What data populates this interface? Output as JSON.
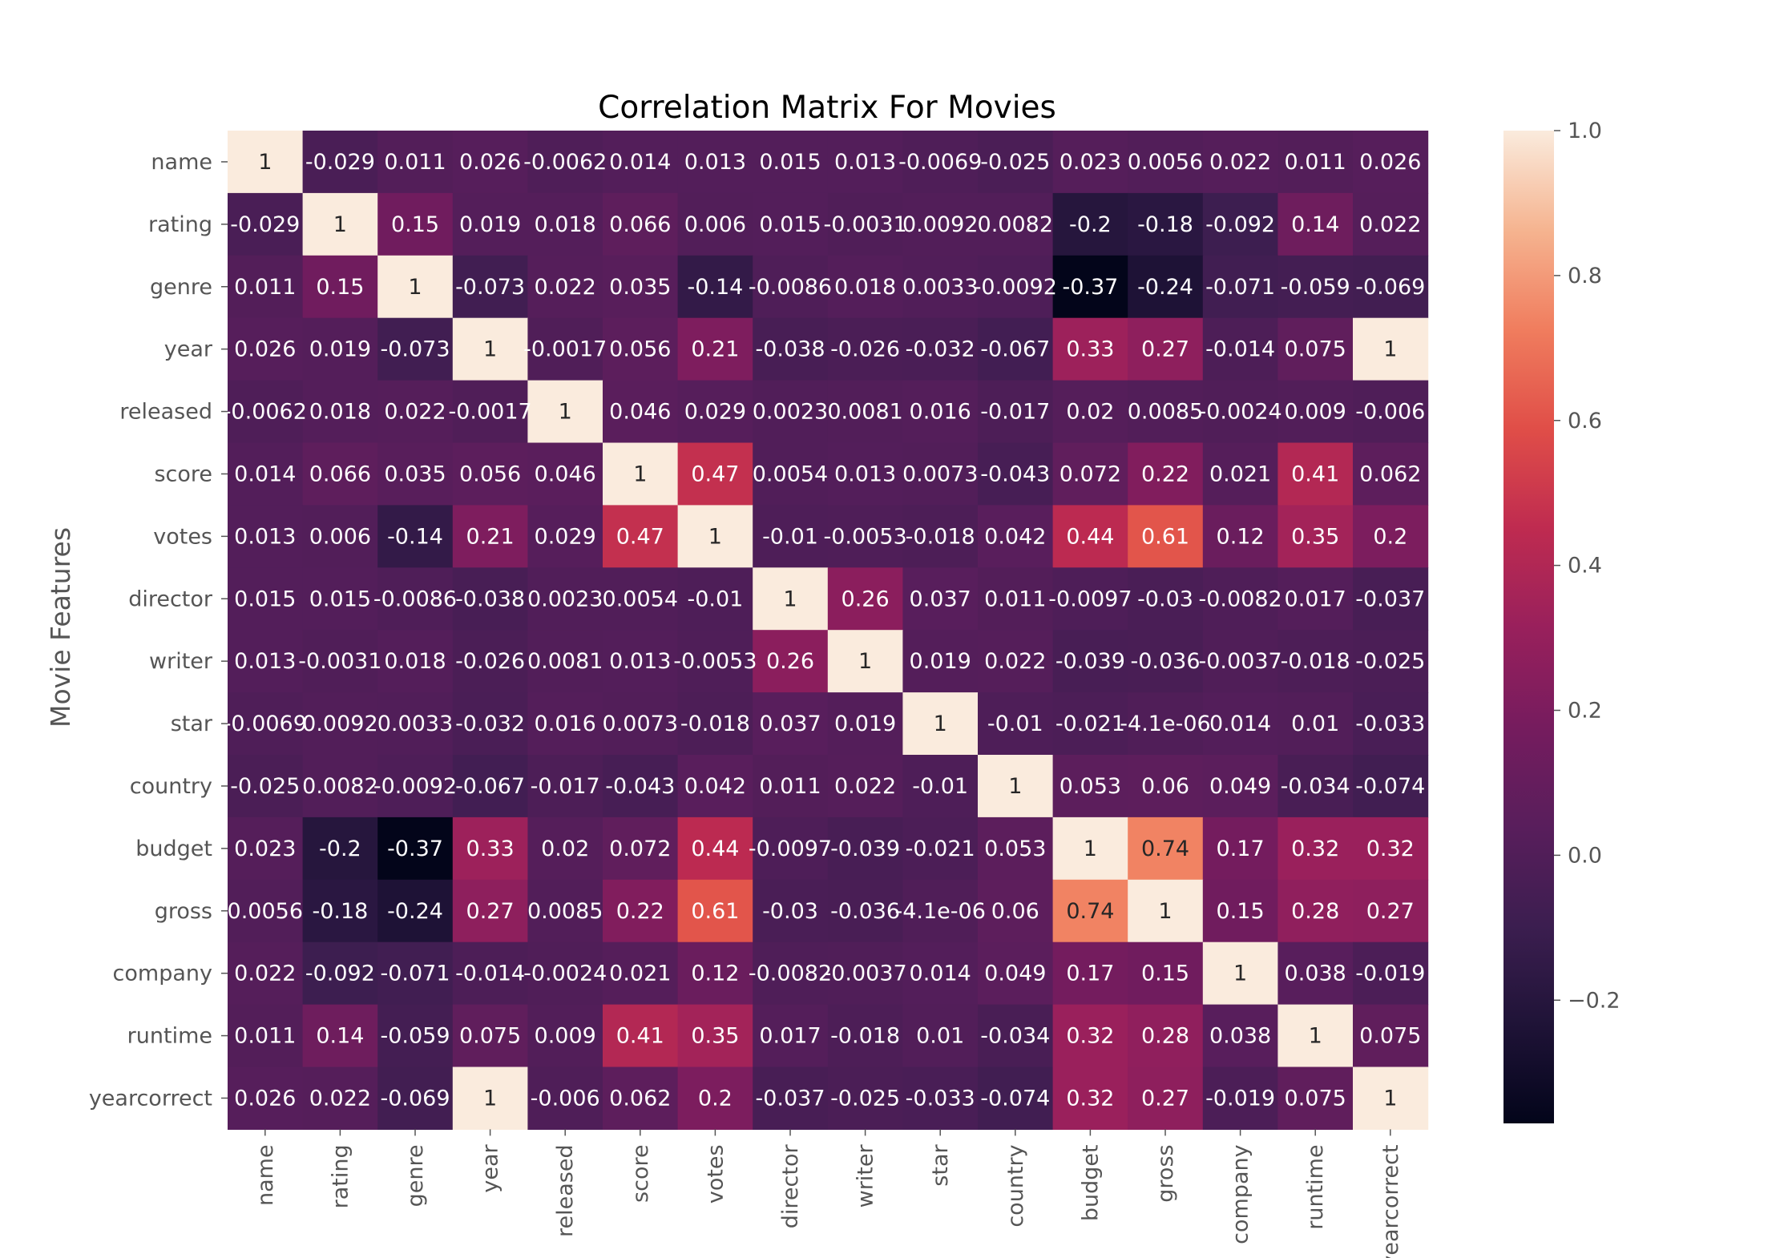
{
  "chart_data": {
    "type": "heatmap",
    "title": "Correlation Matrix For Movies",
    "xlabel": "",
    "ylabel": "Movie Features",
    "colormap": "rocket",
    "colorbar": {
      "vmin": -0.37,
      "vmax": 1.0,
      "ticks": [
        -0.2,
        0.0,
        0.2,
        0.4,
        0.6,
        0.8,
        1.0
      ],
      "tick_labels": [
        "−0.2",
        "0.0",
        "0.2",
        "0.4",
        "0.6",
        "0.8",
        "1.0"
      ]
    },
    "categories": [
      "name",
      "rating",
      "genre",
      "year",
      "released",
      "score",
      "votes",
      "director",
      "writer",
      "star",
      "country",
      "budget",
      "gross",
      "company",
      "runtime",
      "yearcorrect"
    ],
    "values": [
      [
        1,
        -0.029,
        0.011,
        0.026,
        -0.0062,
        0.014,
        0.013,
        0.015,
        0.013,
        -0.0069,
        -0.025,
        0.023,
        0.0056,
        0.022,
        0.011,
        0.026
      ],
      [
        -0.029,
        1,
        0.15,
        0.019,
        0.018,
        0.066,
        0.006,
        0.015,
        -0.0031,
        0.0092,
        0.0082,
        -0.2,
        -0.18,
        -0.092,
        0.14,
        0.022
      ],
      [
        0.011,
        0.15,
        1,
        -0.073,
        0.022,
        0.035,
        -0.14,
        -0.0086,
        0.018,
        0.0033,
        -0.0092,
        -0.37,
        -0.24,
        -0.071,
        -0.059,
        -0.069
      ],
      [
        0.026,
        0.019,
        -0.073,
        1,
        -0.0017,
        0.056,
        0.21,
        -0.038,
        -0.026,
        -0.032,
        -0.067,
        0.33,
        0.27,
        -0.014,
        0.075,
        1
      ],
      [
        -0.0062,
        0.018,
        0.022,
        -0.0017,
        1,
        0.046,
        0.029,
        0.0023,
        0.0081,
        0.016,
        -0.017,
        0.02,
        0.0085,
        -0.0024,
        0.009,
        -0.006
      ],
      [
        0.014,
        0.066,
        0.035,
        0.056,
        0.046,
        1,
        0.47,
        0.0054,
        0.013,
        0.0073,
        -0.043,
        0.072,
        0.22,
        0.021,
        0.41,
        0.062
      ],
      [
        0.013,
        0.006,
        -0.14,
        0.21,
        0.029,
        0.47,
        1,
        -0.01,
        -0.0053,
        -0.018,
        0.042,
        0.44,
        0.61,
        0.12,
        0.35,
        0.2
      ],
      [
        0.015,
        0.015,
        -0.0086,
        -0.038,
        0.0023,
        0.0054,
        -0.01,
        1,
        0.26,
        0.037,
        0.011,
        -0.0097,
        -0.03,
        -0.0082,
        0.017,
        -0.037
      ],
      [
        0.013,
        -0.0031,
        0.018,
        -0.026,
        0.0081,
        0.013,
        -0.0053,
        0.26,
        1,
        0.019,
        0.022,
        -0.039,
        -0.036,
        -0.0037,
        -0.018,
        -0.025
      ],
      [
        -0.0069,
        0.0092,
        0.0033,
        -0.032,
        0.016,
        0.0073,
        -0.018,
        0.037,
        0.019,
        1,
        -0.01,
        -0.021,
        -4.1e-06,
        0.014,
        0.01,
        -0.033
      ],
      [
        -0.025,
        0.0082,
        -0.0092,
        -0.067,
        -0.017,
        -0.043,
        0.042,
        0.011,
        0.022,
        -0.01,
        1,
        0.053,
        0.06,
        0.049,
        -0.034,
        -0.074
      ],
      [
        0.023,
        -0.2,
        -0.37,
        0.33,
        0.02,
        0.072,
        0.44,
        -0.0097,
        -0.039,
        -0.021,
        0.053,
        1,
        0.74,
        0.17,
        0.32,
        0.32
      ],
      [
        0.0056,
        -0.18,
        -0.24,
        0.27,
        0.0085,
        0.22,
        0.61,
        -0.03,
        -0.036,
        -4.1e-06,
        0.06,
        0.74,
        1,
        0.15,
        0.28,
        0.27
      ],
      [
        0.022,
        -0.092,
        -0.071,
        -0.014,
        -0.0024,
        0.021,
        0.12,
        -0.0082,
        -0.0037,
        0.014,
        0.049,
        0.17,
        0.15,
        1,
        0.038,
        -0.019
      ],
      [
        0.011,
        0.14,
        -0.059,
        0.075,
        0.009,
        0.41,
        0.35,
        0.017,
        -0.018,
        0.01,
        -0.034,
        0.32,
        0.28,
        0.038,
        1,
        0.075
      ],
      [
        0.026,
        0.022,
        -0.069,
        1,
        -0.006,
        0.062,
        0.2,
        -0.037,
        -0.025,
        -0.033,
        -0.074,
        0.32,
        0.27,
        -0.019,
        0.075,
        1
      ]
    ],
    "labels": [
      [
        "1",
        "-0.029",
        "0.011",
        "0.026",
        "-0.0062",
        "0.014",
        "0.013",
        "0.015",
        "0.013",
        "-0.0069",
        "-0.025",
        "0.023",
        "0.0056",
        "0.022",
        "0.011",
        "0.026"
      ],
      [
        "-0.029",
        "1",
        "0.15",
        "0.019",
        "0.018",
        "0.066",
        "0.006",
        "0.015",
        "-0.0031",
        "0.0092",
        "0.0082",
        "-0.2",
        "-0.18",
        "-0.092",
        "0.14",
        "0.022"
      ],
      [
        "0.011",
        "0.15",
        "1",
        "-0.073",
        "0.022",
        "0.035",
        "-0.14",
        "-0.0086",
        "0.018",
        "0.0033",
        "-0.0092",
        "-0.37",
        "-0.24",
        "-0.071",
        "-0.059",
        "-0.069"
      ],
      [
        "0.026",
        "0.019",
        "-0.073",
        "1",
        "-0.0017",
        "0.056",
        "0.21",
        "-0.038",
        "-0.026",
        "-0.032",
        "-0.067",
        "0.33",
        "0.27",
        "-0.014",
        "0.075",
        "1"
      ],
      [
        "-0.0062",
        "0.018",
        "0.022",
        "-0.0017",
        "1",
        "0.046",
        "0.029",
        "0.0023",
        "0.0081",
        "0.016",
        "-0.017",
        "0.02",
        "0.0085",
        "-0.0024",
        "0.009",
        "-0.006"
      ],
      [
        "0.014",
        "0.066",
        "0.035",
        "0.056",
        "0.046",
        "1",
        "0.47",
        "0.0054",
        "0.013",
        "0.0073",
        "-0.043",
        "0.072",
        "0.22",
        "0.021",
        "0.41",
        "0.062"
      ],
      [
        "0.013",
        "0.006",
        "-0.14",
        "0.21",
        "0.029",
        "0.47",
        "1",
        "-0.01",
        "-0.0053",
        "-0.018",
        "0.042",
        "0.44",
        "0.61",
        "0.12",
        "0.35",
        "0.2"
      ],
      [
        "0.015",
        "0.015",
        "-0.0086",
        "-0.038",
        "0.0023",
        "0.0054",
        "-0.01",
        "1",
        "0.26",
        "0.037",
        "0.011",
        "-0.0097",
        "-0.03",
        "-0.0082",
        "0.017",
        "-0.037"
      ],
      [
        "0.013",
        "-0.0031",
        "0.018",
        "-0.026",
        "0.0081",
        "0.013",
        "-0.0053",
        "0.26",
        "1",
        "0.019",
        "0.022",
        "-0.039",
        "-0.036",
        "-0.0037",
        "-0.018",
        "-0.025"
      ],
      [
        "-0.0069",
        "0.0092",
        "0.0033",
        "-0.032",
        "0.016",
        "0.0073",
        "-0.018",
        "0.037",
        "0.019",
        "1",
        "-0.01",
        "-0.021",
        "-4.1e-06",
        "0.014",
        "0.01",
        "-0.033"
      ],
      [
        "-0.025",
        "0.0082",
        "-0.0092",
        "-0.067",
        "-0.017",
        "-0.043",
        "0.042",
        "0.011",
        "0.022",
        "-0.01",
        "1",
        "0.053",
        "0.06",
        "0.049",
        "-0.034",
        "-0.074"
      ],
      [
        "0.023",
        "-0.2",
        "-0.37",
        "0.33",
        "0.02",
        "0.072",
        "0.44",
        "-0.0097",
        "-0.039",
        "-0.021",
        "0.053",
        "1",
        "0.74",
        "0.17",
        "0.32",
        "0.32"
      ],
      [
        "0.0056",
        "-0.18",
        "-0.24",
        "0.27",
        "0.0085",
        "0.22",
        "0.61",
        "-0.03",
        "-0.036",
        "-4.1e-06",
        "0.06",
        "0.74",
        "1",
        "0.15",
        "0.28",
        "0.27"
      ],
      [
        "0.022",
        "-0.092",
        "-0.071",
        "-0.014",
        "-0.0024",
        "0.021",
        "0.12",
        "-0.0082",
        "-0.0037",
        "0.014",
        "0.049",
        "0.17",
        "0.15",
        "1",
        "0.038",
        "-0.019"
      ],
      [
        "0.011",
        "0.14",
        "-0.059",
        "0.075",
        "0.009",
        "0.41",
        "0.35",
        "0.017",
        "-0.018",
        "0.01",
        "-0.034",
        "0.32",
        "0.28",
        "0.038",
        "1",
        "0.075"
      ],
      [
        "0.026",
        "0.022",
        "-0.069",
        "1",
        "-0.006",
        "0.062",
        "0.2",
        "-0.037",
        "-0.025",
        "-0.033",
        "-0.074",
        "0.32",
        "0.27",
        "-0.019",
        "0.075",
        "1"
      ]
    ],
    "grid": false,
    "legend": "colorbar-right"
  }
}
